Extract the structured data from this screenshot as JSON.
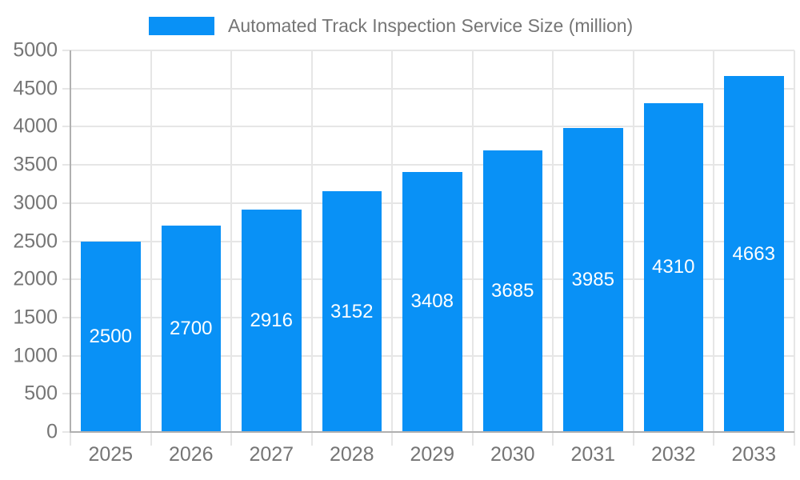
{
  "legend": {
    "label": "Automated Track Inspection Service Size (million)"
  },
  "chart_data": {
    "type": "bar",
    "title": "Automated Track Inspection Service Size (million)",
    "categories": [
      "2025",
      "2026",
      "2027",
      "2028",
      "2029",
      "2030",
      "2031",
      "2032",
      "2033"
    ],
    "values": [
      2500,
      2700,
      2916,
      3152,
      3408,
      3685,
      3985,
      4310,
      4663
    ],
    "xlabel": "",
    "ylabel": "",
    "ylim": [
      0,
      5000
    ],
    "ytick_step": 500,
    "grid": true,
    "legend_position": "top",
    "value_labels": "inside-center",
    "colors": {
      "bar": "#0991f6",
      "value_label": "#ffffff",
      "axis_text": "#757575",
      "axis_line": "#b0b0b0",
      "gridline": "#e6e6e6"
    }
  }
}
